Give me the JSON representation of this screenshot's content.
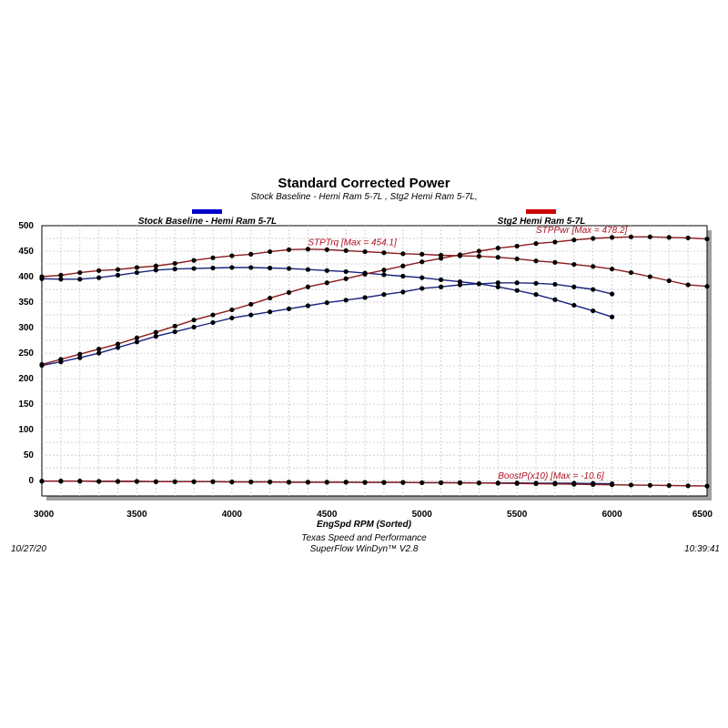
{
  "chart_data": {
    "type": "line",
    "title": "Standard Corrected Power",
    "subtitle": "Stock Baseline - Hemi Ram 5-7L , Stg2 Hemi Ram 5-7L,",
    "xlabel": "EngSpd  RPM   (Sorted)",
    "ylabel": "",
    "xlim": [
      3000,
      6500
    ],
    "ylim": [
      -30,
      500
    ],
    "x_ticks": [
      3000,
      3500,
      4000,
      4500,
      5000,
      5500,
      6000,
      6500
    ],
    "y_ticks": [
      0,
      50,
      100,
      150,
      200,
      250,
      300,
      350,
      400,
      450,
      500
    ],
    "grid": true,
    "legend": [
      {
        "name": "Stock Baseline - Hemi Ram 5-7L",
        "color": "#0000cc",
        "position": "top-left"
      },
      {
        "name": "Stg2 Hemi Ram 5-7L",
        "color": "#cc0000",
        "position": "top-right"
      }
    ],
    "series": [
      {
        "name": "Stock Baseline - Hemi Ram 5-7L",
        "quantity": "STPTrq",
        "color": "#1a237e",
        "x": [
          3000,
          3100,
          3200,
          3300,
          3400,
          3500,
          3600,
          3700,
          3800,
          3900,
          4000,
          4100,
          4200,
          4300,
          4400,
          4500,
          4600,
          4700,
          4800,
          4900,
          5000,
          5100,
          5200,
          5300,
          5400,
          5500,
          5600,
          5700,
          5800,
          5900,
          6000
        ],
        "y": [
          396,
          395,
          395,
          398,
          403,
          408,
          413,
          415,
          416,
          417,
          418,
          418,
          417,
          416,
          414,
          412,
          410,
          407,
          404,
          401,
          398,
          394,
          390,
          386,
          380,
          373,
          365,
          355,
          344,
          333,
          321
        ]
      },
      {
        "name": "Stock Baseline - Hemi Ram 5-7L",
        "quantity": "STPPwr",
        "color": "#1a237e",
        "x": [
          3000,
          3100,
          3200,
          3300,
          3400,
          3500,
          3600,
          3700,
          3800,
          3900,
          4000,
          4100,
          4200,
          4300,
          4400,
          4500,
          4600,
          4700,
          4800,
          4900,
          5000,
          5100,
          5200,
          5300,
          5400,
          5500,
          5600,
          5700,
          5800,
          5900,
          6000
        ],
        "y": [
          226,
          233,
          241,
          250,
          261,
          272,
          283,
          292,
          301,
          310,
          319,
          325,
          331,
          337,
          343,
          349,
          354,
          359,
          365,
          370,
          377,
          380,
          384,
          386,
          388,
          388,
          387,
          385,
          380,
          375,
          366
        ]
      },
      {
        "name": "Stg2 Hemi Ram 5-7L",
        "quantity": "STPTrq",
        "color": "#8b1a1a",
        "x": [
          3000,
          3100,
          3200,
          3300,
          3400,
          3500,
          3600,
          3700,
          3800,
          3900,
          4000,
          4100,
          4200,
          4300,
          4400,
          4500,
          4600,
          4700,
          4800,
          4900,
          5000,
          5100,
          5200,
          5300,
          5400,
          5500,
          5600,
          5700,
          5800,
          5900,
          6000,
          6100,
          6200,
          6300,
          6400,
          6500
        ],
        "y": [
          400,
          403,
          408,
          412,
          414,
          418,
          421,
          426,
          432,
          437,
          441,
          444,
          449,
          453,
          454,
          453,
          451,
          449,
          447,
          445,
          444,
          442,
          441,
          440,
          438,
          435,
          431,
          428,
          424,
          420,
          415,
          408,
          400,
          392,
          384,
          381
        ]
      },
      {
        "name": "Stg2 Hemi Ram 5-7L",
        "quantity": "STPPwr",
        "color": "#8b1a1a",
        "x": [
          3000,
          3100,
          3200,
          3300,
          3400,
          3500,
          3600,
          3700,
          3800,
          3900,
          4000,
          4100,
          4200,
          4300,
          4400,
          4500,
          4600,
          4700,
          4800,
          4900,
          5000,
          5100,
          5200,
          5300,
          5400,
          5500,
          5600,
          5700,
          5800,
          5900,
          6000,
          6100,
          6200,
          6300,
          6400,
          6500
        ],
        "y": [
          228,
          238,
          248,
          258,
          268,
          280,
          291,
          303,
          315,
          325,
          335,
          346,
          358,
          369,
          380,
          388,
          396,
          405,
          413,
          421,
          429,
          436,
          443,
          450,
          456,
          460,
          465,
          468,
          472,
          475,
          477,
          478,
          478,
          477,
          476,
          474
        ]
      },
      {
        "name": "Stock Baseline - Hemi Ram 5-7L",
        "quantity": "BoostP(x10)",
        "color": "#1a237e",
        "x": [
          3000,
          3100,
          3200,
          3300,
          3400,
          3500,
          3600,
          3700,
          3800,
          3900,
          4000,
          4100,
          4200,
          4300,
          4400,
          4500,
          4600,
          4700,
          4800,
          4900,
          5000,
          5100,
          5200,
          5300,
          5400,
          5500,
          5600,
          5700,
          5800,
          5900,
          6000
        ],
        "y": [
          -1,
          -1,
          -1,
          -1.5,
          -1.5,
          -1.5,
          -2,
          -2,
          -2,
          -2,
          -2.5,
          -2.5,
          -2.5,
          -3,
          -3,
          -3,
          -3,
          -3.5,
          -3.5,
          -3.5,
          -4,
          -4,
          -4,
          -4.5,
          -4.5,
          -4.5,
          -5,
          -5,
          -5,
          -5.5,
          -6
        ]
      },
      {
        "name": "Stg2 Hemi Ram 5-7L",
        "quantity": "BoostP(x10)",
        "color": "#8b1a1a",
        "x": [
          3000,
          3100,
          3200,
          3300,
          3400,
          3500,
          3600,
          3700,
          3800,
          3900,
          4000,
          4100,
          4200,
          4300,
          4400,
          4500,
          4600,
          4700,
          4800,
          4900,
          5000,
          5100,
          5200,
          5300,
          5400,
          5500,
          5600,
          5700,
          5800,
          5900,
          6000,
          6100,
          6200,
          6300,
          6400,
          6500
        ],
        "y": [
          -1,
          -1,
          -1,
          -1.5,
          -1.5,
          -1.5,
          -2,
          -2,
          -2,
          -2,
          -2.5,
          -2.5,
          -2.5,
          -3,
          -3,
          -3,
          -3,
          -3.5,
          -3.5,
          -3.5,
          -4,
          -4,
          -4.5,
          -4.5,
          -5,
          -5.5,
          -6,
          -6.5,
          -7,
          -7.5,
          -8,
          -8.5,
          -9,
          -9.5,
          -10,
          -10.6
        ]
      }
    ],
    "annotations": [
      {
        "text": "STPTrq [Max = 454.1]",
        "x": 4400,
        "y": 462
      },
      {
        "text": "STPPwr [Max = 478.2]",
        "x": 5600,
        "y": 486
      },
      {
        "text": "BoostP(x10) [Max = -10.6]",
        "x": 5400,
        "y": 4
      }
    ]
  },
  "footer": {
    "date": "10/27/20",
    "company": "Texas Speed and Performance",
    "software": "SuperFlow WinDyn™  V2.8",
    "time": "10:39:41"
  }
}
